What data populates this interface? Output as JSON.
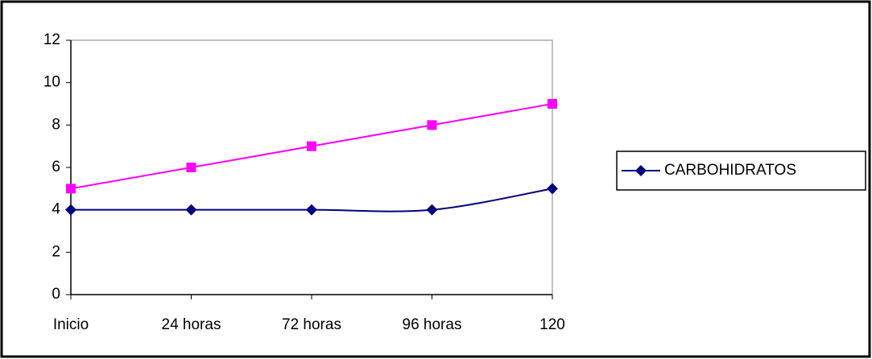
{
  "chart_data": {
    "type": "line",
    "categories": [
      "Inicio",
      "24 horas",
      "72 horas",
      "96 horas",
      "120"
    ],
    "series": [
      {
        "name": "CARBOHIDRATOS",
        "color": "#000080",
        "marker": "diamond",
        "smooth": true,
        "values": [
          4,
          4,
          4,
          4,
          5
        ]
      },
      {
        "color": "#ff00ff",
        "marker": "square",
        "smooth": false,
        "values": [
          5,
          6,
          7,
          8,
          9
        ]
      }
    ],
    "ylim": [
      0,
      12
    ],
    "yticks": [
      0,
      2,
      4,
      6,
      8,
      10,
      12
    ],
    "grid": false,
    "legend": "right"
  }
}
